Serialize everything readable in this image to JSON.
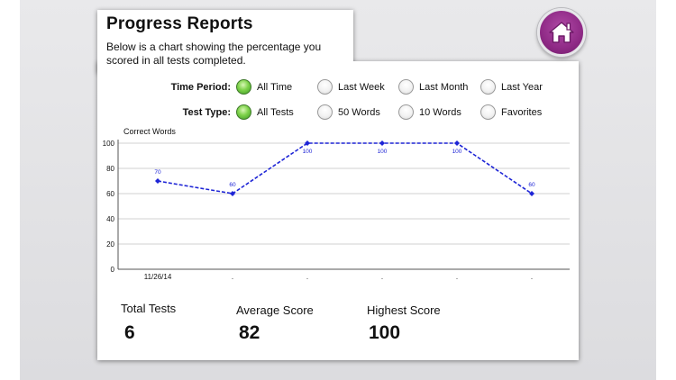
{
  "header": {
    "title": "Progress Reports",
    "description": "Below is a chart showing the percentage you scored in all tests completed."
  },
  "home_icon": "home-icon",
  "filters": {
    "time_period": {
      "label": "Time Period:",
      "options": [
        "All Time",
        "Last Week",
        "Last Month",
        "Last Year"
      ],
      "selected": "All Time"
    },
    "test_type": {
      "label": "Test Type:",
      "options": [
        "All Tests",
        "50 Words",
        "10 Words",
        "Favorites"
      ],
      "selected": "All Tests"
    }
  },
  "chart_data": {
    "type": "line",
    "ylabel": "Correct Words",
    "ylim": [
      0,
      100
    ],
    "yticks": [
      0,
      20,
      40,
      60,
      80,
      100
    ],
    "categories": [
      "11/26/14",
      ".",
      ".",
      ".",
      ".",
      "."
    ],
    "series": [
      {
        "values": [
          70,
          60,
          100,
          100,
          100,
          60
        ],
        "color": "#1e25d6"
      }
    ],
    "data_labels": [
      "70",
      "60",
      "100",
      "100",
      "100",
      "60"
    ],
    "grid": true
  },
  "stats": {
    "total_tests": {
      "label": "Total Tests",
      "value": "6"
    },
    "average_score": {
      "label": "Average Score",
      "value": "82"
    },
    "highest_score": {
      "label": "Highest Score",
      "value": "100"
    }
  }
}
